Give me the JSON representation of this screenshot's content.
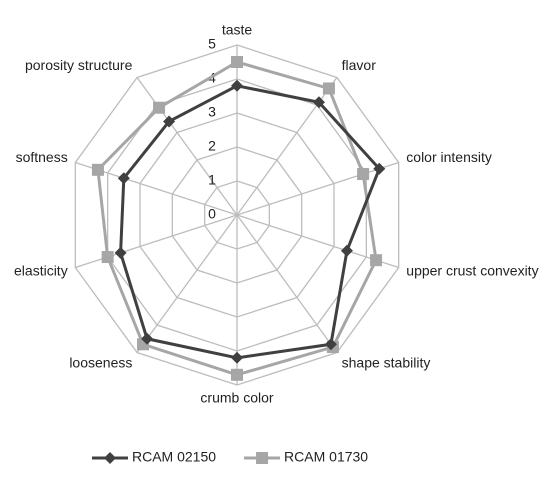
{
  "chart_data": {
    "type": "radar",
    "categories": [
      "taste",
      "flavor",
      "color intensity",
      "upper crust convexity",
      "shape stability",
      "crumb color",
      "looseness",
      "elasticity",
      "softness",
      "porosity structure"
    ],
    "series": [
      {
        "name": "RCAM 02150",
        "color": "#404040",
        "marker": "diamond",
        "values": [
          3.8,
          4.1,
          4.4,
          3.4,
          4.7,
          4.2,
          4.5,
          3.6,
          3.5,
          3.4
        ]
      },
      {
        "name": "RCAM 01730",
        "color": "#a6a6a6",
        "marker": "square",
        "values": [
          4.5,
          4.6,
          3.9,
          4.3,
          4.8,
          4.7,
          4.7,
          4.0,
          4.3,
          3.9
        ]
      }
    ],
    "rlim": [
      0,
      5
    ],
    "rticks": [
      0,
      1,
      2,
      3,
      4,
      5
    ],
    "grid": true,
    "legend": "bottom"
  }
}
